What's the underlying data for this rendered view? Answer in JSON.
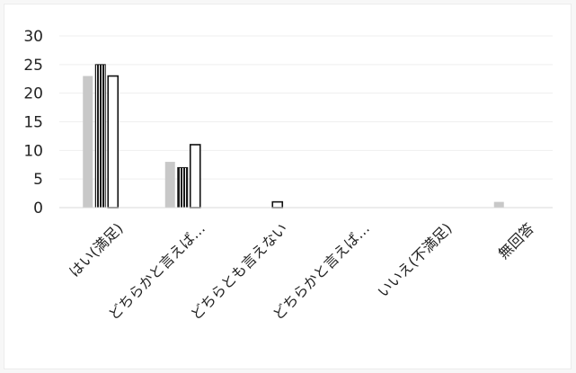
{
  "chart_data": {
    "type": "bar",
    "title": "",
    "xlabel": "",
    "ylabel": "",
    "ylim": [
      0,
      30
    ],
    "yticks": [
      0,
      5,
      10,
      15,
      20,
      25,
      30
    ],
    "grid": true,
    "legend": "none",
    "categories": [
      "はい(満足)",
      "どちらかと言えば…",
      "どちらとも言えない",
      "どちらかと言えば…",
      "いいえ(不満足)",
      "無回答"
    ],
    "series": [
      {
        "values": [
          23,
          8,
          0,
          0,
          0,
          1
        ],
        "color": "#c8c8c8",
        "pattern": "solid-gray"
      },
      {
        "values": [
          25,
          7,
          0,
          0,
          0,
          0
        ],
        "color": "#1a1a1a",
        "pattern": "vertical-stripes"
      },
      {
        "values": [
          23,
          11,
          1,
          0,
          0,
          0
        ],
        "color": "#ffffff",
        "stroke": "#111111",
        "pattern": "outlined"
      }
    ]
  }
}
